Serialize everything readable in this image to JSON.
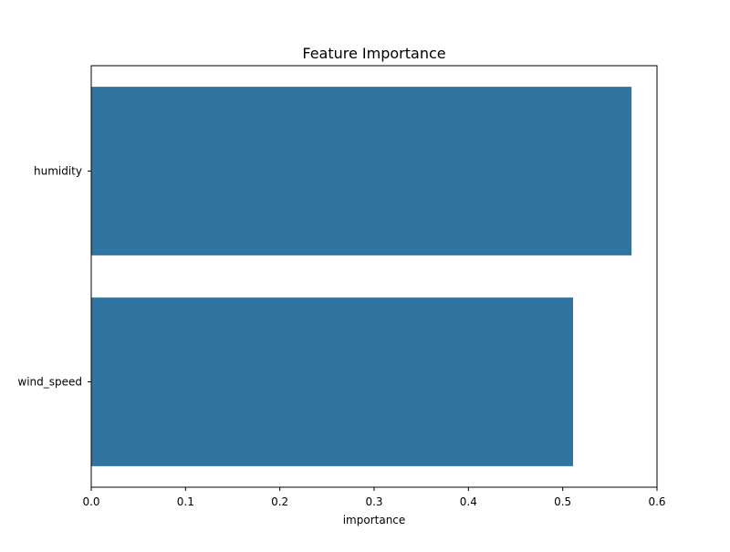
{
  "chart_data": {
    "type": "bar",
    "orientation": "horizontal",
    "title": "Feature Importance",
    "xlabel": "importance",
    "ylabel": "",
    "categories": [
      "humidity",
      "wind_speed"
    ],
    "values": [
      0.573,
      0.511
    ],
    "xlim": [
      0.0,
      0.6
    ],
    "xticks": [
      0.0,
      0.1,
      0.2,
      0.3,
      0.4,
      0.5,
      0.6
    ],
    "xtick_labels": [
      "0.0",
      "0.1",
      "0.2",
      "0.3",
      "0.4",
      "0.5",
      "0.6"
    ],
    "grid": false,
    "legend": "none",
    "bar_color": "#3274a1"
  }
}
